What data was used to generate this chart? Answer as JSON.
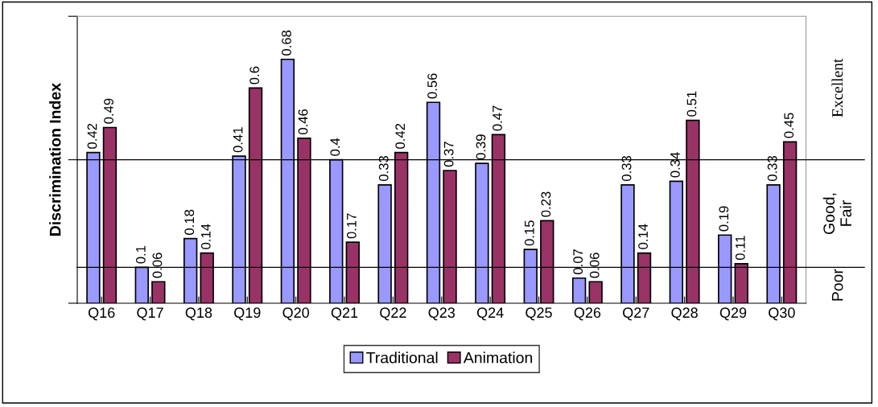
{
  "chart_data": {
    "type": "bar",
    "ylabel": "Discrimination Index",
    "categories": [
      "Q16",
      "Q17",
      "Q18",
      "Q19",
      "Q20",
      "Q21",
      "Q22",
      "Q23",
      "Q24",
      "Q25",
      "Q26",
      "Q27",
      "Q28",
      "Q29",
      "Q30"
    ],
    "series": [
      {
        "name": "Traditional",
        "color": "#9999ff",
        "values": [
          0.42,
          0.1,
          0.18,
          0.41,
          0.68,
          0.4,
          0.33,
          0.56,
          0.39,
          0.15,
          0.07,
          0.33,
          0.34,
          0.19,
          0.33
        ]
      },
      {
        "name": "Animation",
        "color": "#993366",
        "values": [
          0.49,
          0.06,
          0.14,
          0.6,
          0.46,
          0.17,
          0.42,
          0.37,
          0.47,
          0.23,
          0.06,
          0.14,
          0.51,
          0.11,
          0.45
        ]
      }
    ],
    "ylim": [
      0,
      0.8
    ],
    "yticks": [
      {
        "value": 0,
        "label": null
      },
      {
        "value": 0.4,
        "label": null
      },
      {
        "value": 0.8,
        "label": null
      }
    ],
    "tick_labels": "x",
    "data_labels": true,
    "legend": "bottom",
    "grid": false,
    "ref_lines": [
      {
        "axis": "y",
        "value": 0.4,
        "color": "#000000"
      },
      {
        "axis": "y",
        "value": 0.1,
        "color": "#000000"
      }
    ],
    "annotations": [
      "Excellent",
      "Good,\nFair",
      "Poor"
    ]
  }
}
